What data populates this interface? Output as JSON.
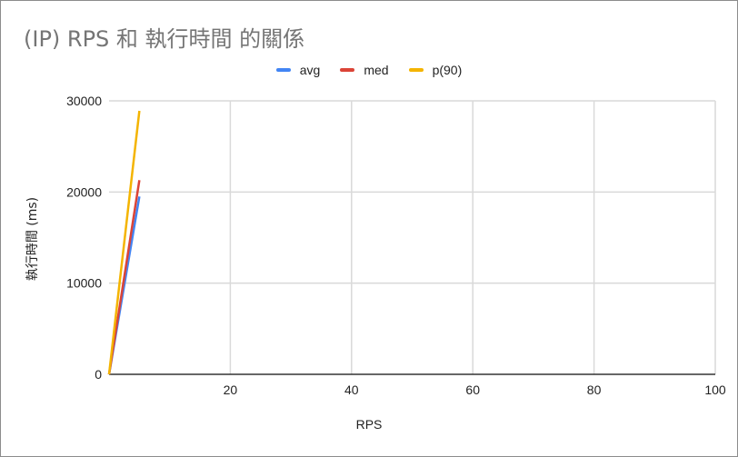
{
  "chart_data": {
    "type": "line",
    "title": "(IP) RPS 和 執行時間 的關係",
    "xlabel": "RPS",
    "ylabel": "執行時間 (ms)",
    "xlim": [
      0,
      100
    ],
    "ylim": [
      0,
      30000
    ],
    "x_ticks": [
      "20",
      "40",
      "60",
      "80",
      "100"
    ],
    "y_ticks": [
      "0",
      "10000",
      "20000",
      "30000"
    ],
    "grid": true,
    "legend_position": "top",
    "series": [
      {
        "name": "avg",
        "color": "#4285f4",
        "x": [
          0,
          5
        ],
        "y": [
          0,
          19500
        ]
      },
      {
        "name": "med",
        "color": "#db4437",
        "x": [
          0,
          5
        ],
        "y": [
          0,
          21300
        ]
      },
      {
        "name": "p(90)",
        "color": "#f4b400",
        "x": [
          0,
          5
        ],
        "y": [
          0,
          28900
        ]
      }
    ]
  }
}
